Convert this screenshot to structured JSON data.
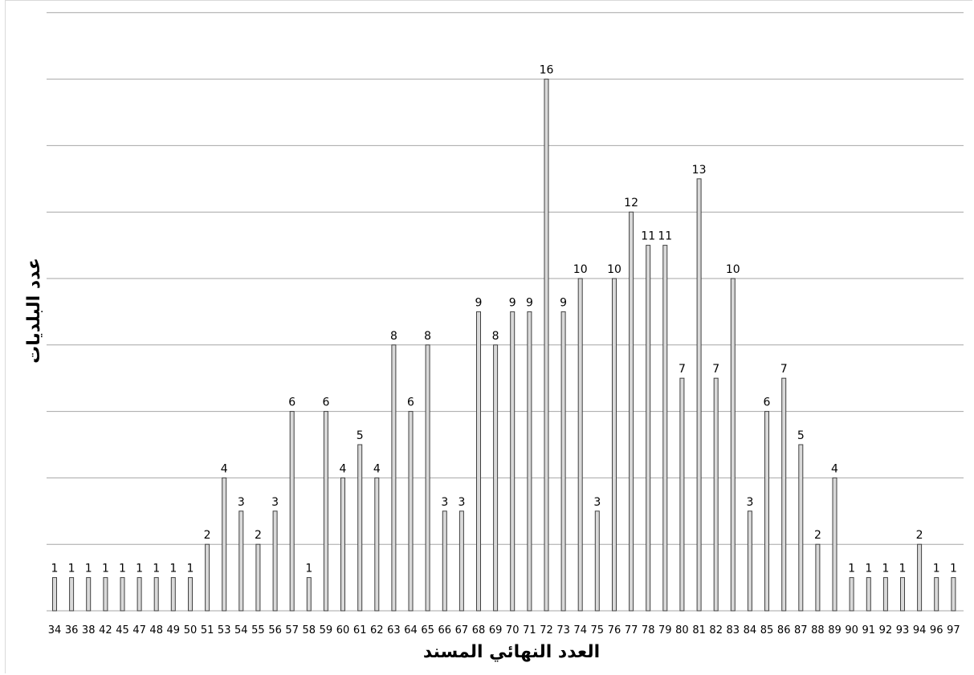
{
  "chart_data": {
    "type": "bar",
    "title": "",
    "xlabel": "العدد النهائي المسند",
    "ylabel": "عدد البلديات",
    "ylim": [
      0,
      18
    ],
    "grid": true,
    "legend": "none",
    "colors": {
      "bar_fill": "#d9d9d9",
      "bar_stroke": "#404040",
      "grid": "#a6a6a6"
    },
    "categories": [
      "34",
      "36",
      "38",
      "42",
      "45",
      "47",
      "48",
      "49",
      "50",
      "51",
      "53",
      "54",
      "55",
      "56",
      "57",
      "58",
      "59",
      "60",
      "61",
      "62",
      "63",
      "64",
      "65",
      "66",
      "67",
      "68",
      "69",
      "70",
      "71",
      "72",
      "73",
      "74",
      "75",
      "76",
      "77",
      "78",
      "79",
      "80",
      "81",
      "82",
      "83",
      "84",
      "85",
      "86",
      "87",
      "88",
      "89",
      "90",
      "91",
      "92",
      "93",
      "94",
      "96",
      "97"
    ],
    "values": [
      1,
      1,
      1,
      1,
      1,
      1,
      1,
      1,
      1,
      2,
      4,
      3,
      2,
      3,
      6,
      1,
      6,
      4,
      5,
      4,
      8,
      6,
      8,
      3,
      3,
      9,
      8,
      9,
      9,
      16,
      9,
      10,
      3,
      10,
      12,
      11,
      11,
      7,
      13,
      7,
      10,
      3,
      6,
      7,
      5,
      2,
      4,
      1,
      1,
      1,
      1,
      2,
      1,
      1
    ]
  }
}
